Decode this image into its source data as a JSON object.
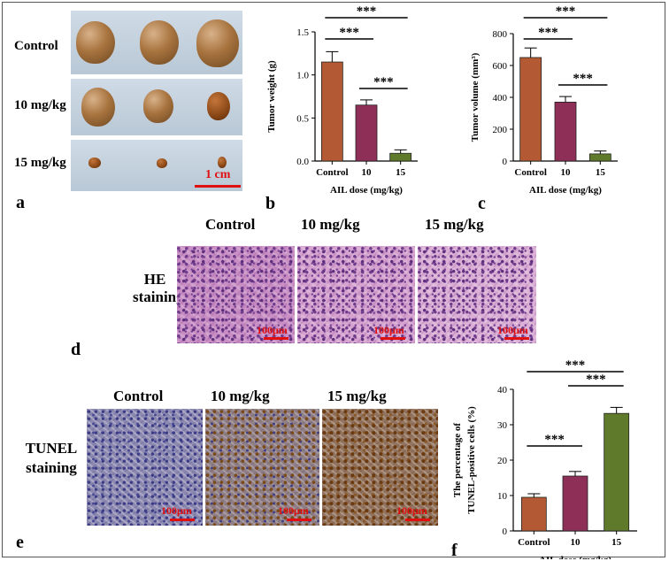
{
  "panel_a": {
    "letter": "a",
    "rows": [
      "Control",
      "10 mg/kg",
      "15 mg/kg"
    ],
    "scale_label": "1 cm"
  },
  "panel_d": {
    "letter": "d",
    "columns": [
      "Control",
      "10 mg/kg",
      "15 mg/kg"
    ],
    "row_label_1": "HE",
    "row_label_2": "staining",
    "scale_label": "100μm"
  },
  "panel_e": {
    "letter": "e",
    "columns": [
      "Control",
      "10 mg/kg",
      "15 mg/kg"
    ],
    "row_label_1": "TUNEL",
    "row_label_2": "staining",
    "scale_label": "100μm"
  },
  "colors": {
    "control": "#b35a34",
    "dose10": "#8e2f58",
    "dose15": "#5f7a2a",
    "scale": "#e01010"
  },
  "chart_data": [
    {
      "id": "b",
      "letter": "b",
      "type": "bar",
      "categories": [
        "Control",
        "10",
        "15"
      ],
      "values": [
        1.15,
        0.65,
        0.09
      ],
      "errors": [
        0.12,
        0.06,
        0.04
      ],
      "ylabel": "Tumor weight (g)",
      "xlabel": "AIL dose (mg/kg)",
      "ylim": [
        0,
        1.5
      ],
      "yticks": [
        "0.0",
        "0.5",
        "1.0",
        "1.5"
      ],
      "sig": [
        {
          "from": 0,
          "to": 2,
          "label": "***"
        },
        {
          "from": 0,
          "to": 1,
          "label": "***"
        },
        {
          "from": 1,
          "to": 2,
          "label": "***"
        }
      ]
    },
    {
      "id": "c",
      "letter": "c",
      "type": "bar",
      "categories": [
        "Control",
        "10",
        "15"
      ],
      "values": [
        650,
        370,
        45
      ],
      "errors": [
        60,
        35,
        18
      ],
      "ylabel": "Tumor volume (mm³)",
      "xlabel": "AIL dose (mg/kg)",
      "ylim": [
        0,
        800
      ],
      "yticks": [
        "0",
        "200",
        "400",
        "600",
        "800"
      ],
      "sig": [
        {
          "from": 0,
          "to": 2,
          "label": "***"
        },
        {
          "from": 0,
          "to": 1,
          "label": "***"
        },
        {
          "from": 1,
          "to": 2,
          "label": "***"
        }
      ]
    },
    {
      "id": "f",
      "letter": "f",
      "type": "bar",
      "categories": [
        "Control",
        "10",
        "15"
      ],
      "values": [
        9.5,
        15.5,
        33.2
      ],
      "errors": [
        1.0,
        1.3,
        1.7
      ],
      "ylabel_1": "The percentage of",
      "ylabel_2": "TUNEL-positive cells (%)",
      "xlabel": "AIL dose (mg/kg)",
      "ylim": [
        0,
        40
      ],
      "yticks": [
        "0",
        "10",
        "20",
        "30",
        "40"
      ],
      "sig": [
        {
          "from": 0,
          "to": 2,
          "label": "***"
        },
        {
          "from": 1,
          "to": 2,
          "label": "***"
        },
        {
          "from": 0,
          "to": 1,
          "label": "***"
        }
      ]
    }
  ]
}
